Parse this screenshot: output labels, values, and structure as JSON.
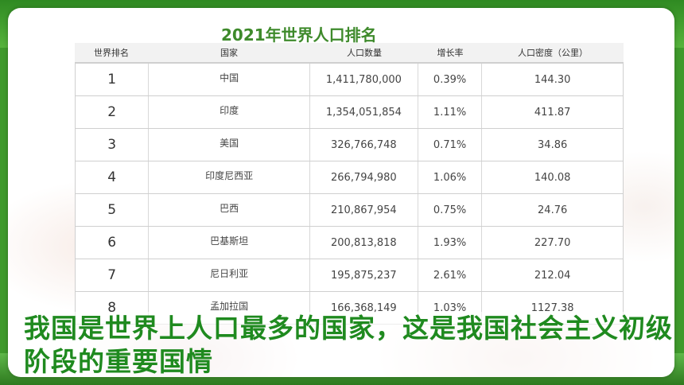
{
  "title": "2021年世界人口排名",
  "table": {
    "headers": [
      "世界排名",
      "国家",
      "人口数量",
      "增长率",
      "人口密度（公里）"
    ],
    "rows": [
      {
        "rank": "1",
        "country": "中国",
        "population": "1,411,780,000",
        "growth": "0.39%",
        "density": "144.30"
      },
      {
        "rank": "2",
        "country": "印度",
        "population": "1,354,051,854",
        "growth": "1.11%",
        "density": "411.87"
      },
      {
        "rank": "3",
        "country": "美国",
        "population": "326,766,748",
        "growth": "0.71%",
        "density": "34.86"
      },
      {
        "rank": "4",
        "country": "印度尼西亚",
        "population": "266,794,980",
        "growth": "1.06%",
        "density": "140.08"
      },
      {
        "rank": "5",
        "country": "巴西",
        "population": "210,867,954",
        "growth": "0.75%",
        "density": "24.76"
      },
      {
        "rank": "6",
        "country": "巴基斯坦",
        "population": "200,813,818",
        "growth": "1.93%",
        "density": "227.70"
      },
      {
        "rank": "7",
        "country": "尼日利亚",
        "population": "195,875,237",
        "growth": "2.61%",
        "density": "212.04"
      },
      {
        "rank": "8",
        "country": "孟加拉国",
        "population": "166,368,149",
        "growth": "1.03%",
        "density": "1127.38"
      }
    ]
  },
  "caption": "我国是世界上人口最多的国家，这是我国社会主义初级阶段的重要国情",
  "colors": {
    "background_green": "#3f9a2c",
    "title_green": "#3e8a2b",
    "caption_green": "#1f8a1f"
  }
}
